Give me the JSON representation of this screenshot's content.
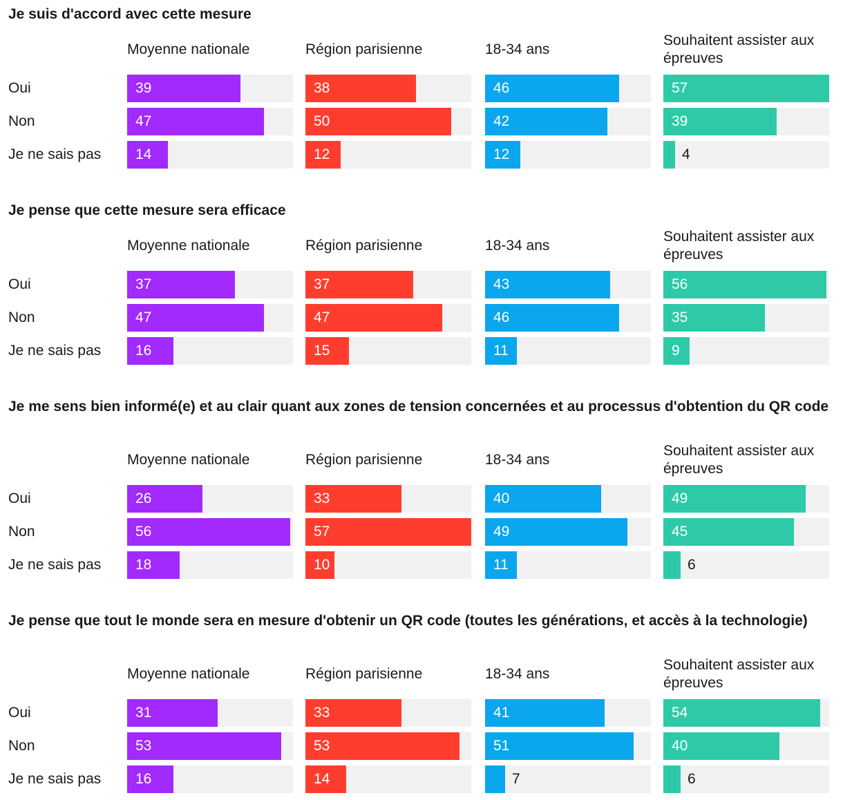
{
  "chart_data": [
    {
      "type": "bar",
      "title": "Je suis d'accord avec cette mesure",
      "categories": [
        "Oui",
        "Non",
        "Je ne sais pas"
      ],
      "series": [
        {
          "name": "Moyenne nationale",
          "color": "#a22afd",
          "values": [
            39,
            47,
            14
          ]
        },
        {
          "name": "Région parisienne",
          "color": "#ff3d2e",
          "values": [
            38,
            50,
            12
          ]
        },
        {
          "name": "18-34 ans",
          "color": "#0aa6ee",
          "values": [
            46,
            42,
            12
          ]
        },
        {
          "name": "Souhaitent assister aux épreuves",
          "color": "#2ecaa8",
          "values": [
            57,
            39,
            4
          ]
        }
      ],
      "xlim": [
        0,
        57
      ]
    },
    {
      "type": "bar",
      "title": "Je pense que cette mesure sera efficace",
      "categories": [
        "Oui",
        "Non",
        "Je ne sais pas"
      ],
      "series": [
        {
          "name": "Moyenne nationale",
          "color": "#a22afd",
          "values": [
            37,
            47,
            16
          ]
        },
        {
          "name": "Région parisienne",
          "color": "#ff3d2e",
          "values": [
            37,
            47,
            15
          ]
        },
        {
          "name": "18-34 ans",
          "color": "#0aa6ee",
          "values": [
            43,
            46,
            11
          ]
        },
        {
          "name": "Souhaitent assister aux épreuves",
          "color": "#2ecaa8",
          "values": [
            56,
            35,
            9
          ]
        }
      ],
      "xlim": [
        0,
        57
      ]
    },
    {
      "type": "bar",
      "title": "Je me sens bien informé(e) et au clair quant aux zones de tension concernées et au processus d'obtention du QR code",
      "categories": [
        "Oui",
        "Non",
        "Je ne sais pas"
      ],
      "series": [
        {
          "name": "Moyenne nationale",
          "color": "#a22afd",
          "values": [
            26,
            56,
            18
          ]
        },
        {
          "name": "Région parisienne",
          "color": "#ff3d2e",
          "values": [
            33,
            57,
            10
          ]
        },
        {
          "name": "18-34 ans",
          "color": "#0aa6ee",
          "values": [
            40,
            49,
            11
          ]
        },
        {
          "name": "Souhaitent assister aux épreuves",
          "color": "#2ecaa8",
          "values": [
            49,
            45,
            6
          ]
        }
      ],
      "xlim": [
        0,
        57
      ]
    },
    {
      "type": "bar",
      "title": "Je pense que tout le monde sera en mesure d'obtenir un QR code (toutes les générations, et accès à la technologie)",
      "categories": [
        "Oui",
        "Non",
        "Je ne sais pas"
      ],
      "series": [
        {
          "name": "Moyenne nationale",
          "color": "#a22afd",
          "values": [
            31,
            53,
            16
          ]
        },
        {
          "name": "Région parisienne",
          "color": "#ff3d2e",
          "values": [
            33,
            53,
            14
          ]
        },
        {
          "name": "18-34 ans",
          "color": "#0aa6ee",
          "values": [
            41,
            51,
            7
          ]
        },
        {
          "name": "Souhaitent assister aux épreuves",
          "color": "#2ecaa8",
          "values": [
            54,
            40,
            6
          ]
        }
      ],
      "xlim": [
        0,
        57
      ]
    }
  ]
}
